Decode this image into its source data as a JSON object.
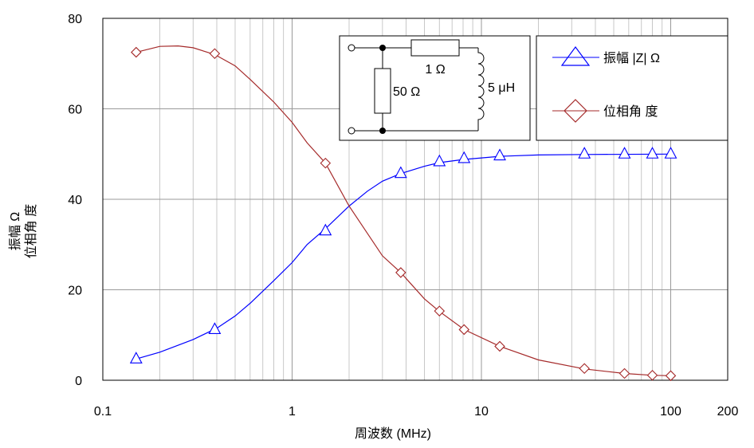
{
  "chart_data": {
    "type": "line",
    "xlabel": "周波数 (MHz)",
    "ylabel_lines": [
      "振幅 Ω",
      "位相角 度"
    ],
    "x_scale": "log",
    "xlim": [
      0.1,
      200
    ],
    "ylim": [
      0,
      80
    ],
    "x_ticks": [
      0.1,
      1,
      10,
      100,
      200
    ],
    "x_tick_labels": [
      "0.1",
      "1",
      "10",
      "100",
      "200"
    ],
    "y_ticks": [
      0,
      20,
      40,
      60,
      80
    ],
    "y_tick_labels": [
      "0",
      "20",
      "40",
      "60",
      "80"
    ],
    "grid": "vertical minor and major on log x axis",
    "legend_position": "top-right",
    "series": [
      {
        "name": "振幅 |Z| Ω",
        "color": "#0000ff",
        "marker": "triangle",
        "curve": [
          [
            0.15,
            4.7
          ],
          [
            0.2,
            6.2
          ],
          [
            0.3,
            9.0
          ],
          [
            0.4,
            11.5
          ],
          [
            0.5,
            14.2
          ],
          [
            0.6,
            17.0
          ],
          [
            0.8,
            22.0
          ],
          [
            1.0,
            26.0
          ],
          [
            1.2,
            30.0
          ],
          [
            1.5,
            33.5
          ],
          [
            2.0,
            38.5
          ],
          [
            2.5,
            41.8
          ],
          [
            3.0,
            44.0
          ],
          [
            3.75,
            45.7
          ],
          [
            5.0,
            47.3
          ],
          [
            6.0,
            48.1
          ],
          [
            8.0,
            48.8
          ],
          [
            12.5,
            49.5
          ],
          [
            20,
            49.8
          ],
          [
            35,
            49.9
          ],
          [
            100,
            50.0
          ]
        ],
        "markers": [
          [
            0.15,
            4.7
          ],
          [
            0.39,
            11.2
          ],
          [
            1.5,
            33.0
          ],
          [
            3.75,
            45.7
          ],
          [
            6.0,
            48.3
          ],
          [
            8.1,
            49.0
          ],
          [
            12.5,
            49.6
          ],
          [
            35,
            50.0
          ],
          [
            57,
            50.0
          ],
          [
            80,
            50.0
          ],
          [
            100,
            50.0
          ]
        ]
      },
      {
        "name": "位相角 度",
        "color": "#a52a2a",
        "marker": "diamond",
        "curve": [
          [
            0.15,
            72.5
          ],
          [
            0.2,
            73.8
          ],
          [
            0.25,
            73.9
          ],
          [
            0.3,
            73.5
          ],
          [
            0.39,
            72.0
          ],
          [
            0.5,
            69.5
          ],
          [
            0.6,
            66.5
          ],
          [
            0.8,
            61.5
          ],
          [
            1.0,
            57.0
          ],
          [
            1.2,
            52.5
          ],
          [
            1.5,
            48.0
          ],
          [
            2.0,
            38.5
          ],
          [
            3.0,
            27.5
          ],
          [
            3.75,
            23.8
          ],
          [
            5.0,
            18.0
          ],
          [
            6.0,
            15.2
          ],
          [
            8.1,
            11.2
          ],
          [
            12.5,
            7.5
          ],
          [
            20,
            4.5
          ],
          [
            35,
            2.5
          ],
          [
            57,
            1.5
          ],
          [
            80,
            1.1
          ],
          [
            100,
            1.0
          ]
        ],
        "markers": [
          [
            0.15,
            72.5
          ],
          [
            0.39,
            72.2
          ],
          [
            1.5,
            48.0
          ],
          [
            3.75,
            23.8
          ],
          [
            6.0,
            15.3
          ],
          [
            8.1,
            11.2
          ],
          [
            12.5,
            7.5
          ],
          [
            35,
            2.6
          ],
          [
            57,
            1.5
          ],
          [
            80,
            1.1
          ],
          [
            100,
            1.0
          ]
        ]
      }
    ],
    "inset_circuit": {
      "labels": [
        "1 Ω",
        "5 μH",
        "50 Ω"
      ]
    }
  }
}
